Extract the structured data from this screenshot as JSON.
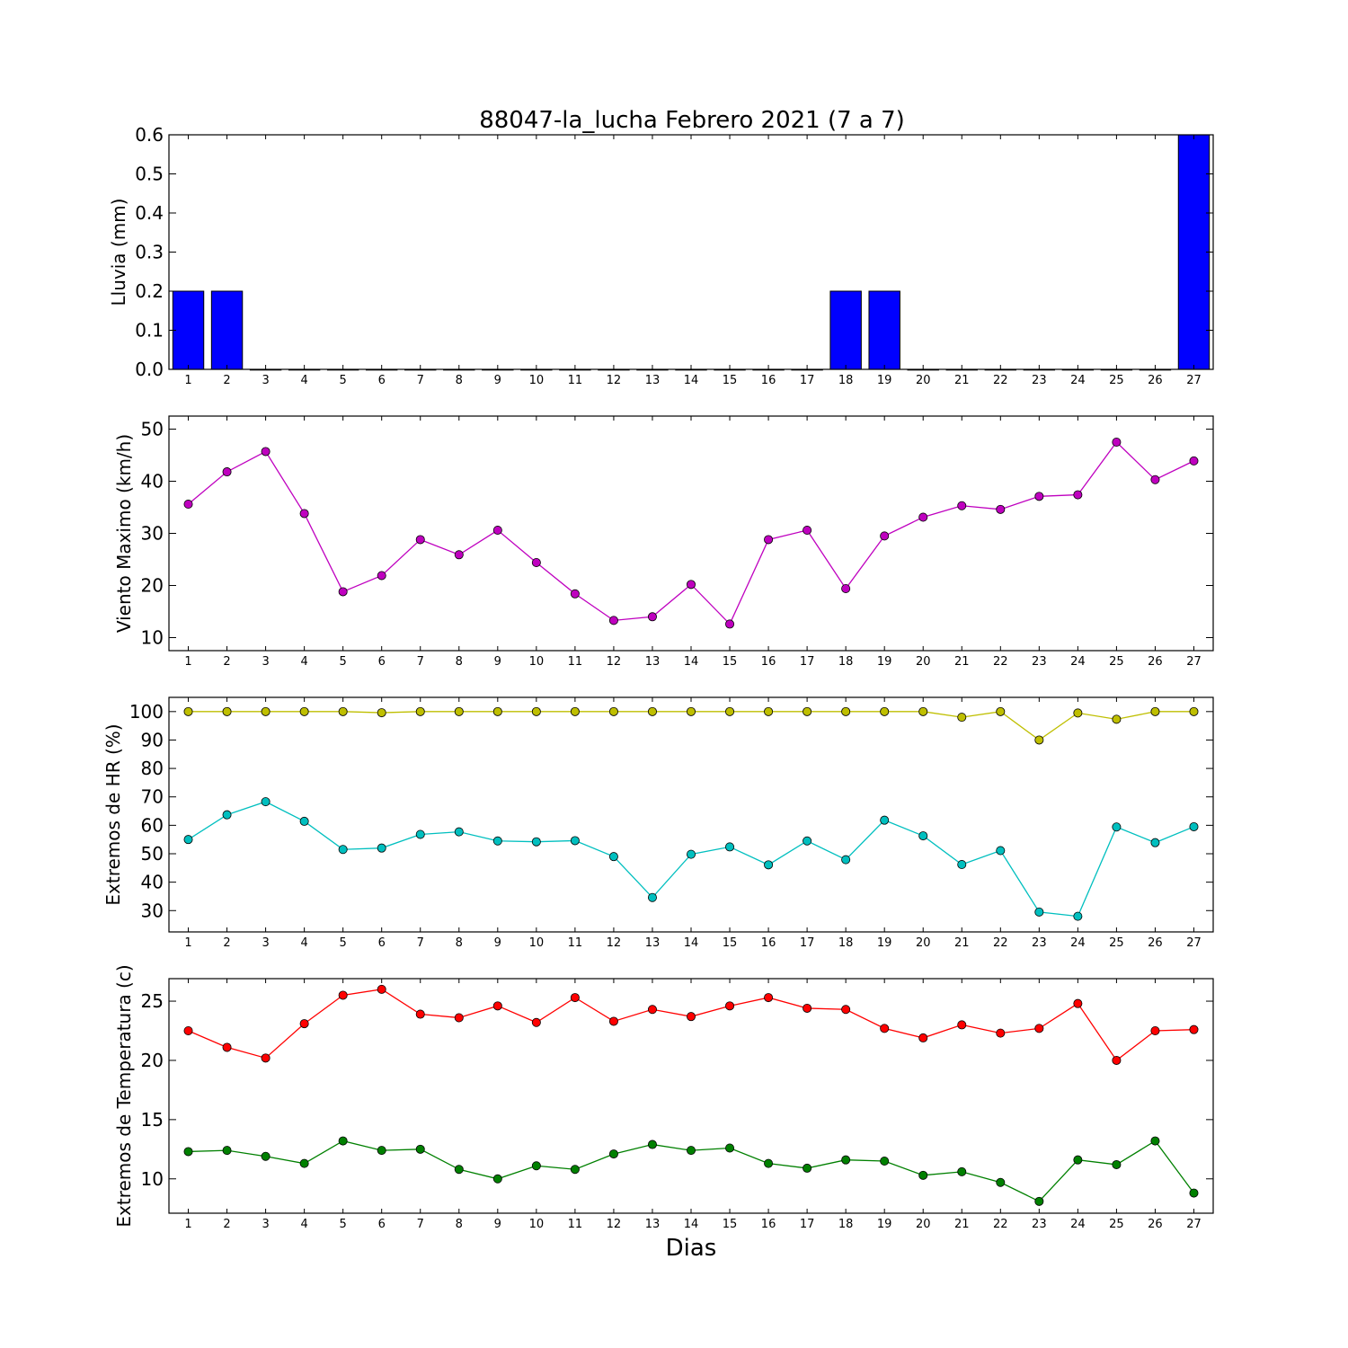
{
  "figure": {
    "title": "88047-la_lucha Febrero 2021  (7 a 7)",
    "xlabel": "Dias"
  },
  "chart_data": [
    {
      "type": "bar",
      "ylabel": "Lluvia (mm)",
      "categories": [
        "1",
        "2",
        "3",
        "4",
        "5",
        "6",
        "7",
        "8",
        "9",
        "10",
        "11",
        "12",
        "13",
        "14",
        "15",
        "16",
        "17",
        "18",
        "19",
        "20",
        "21",
        "22",
        "23",
        "24",
        "25",
        "26",
        "27"
      ],
      "ylim": [
        0,
        0.6
      ],
      "yticks": [
        0.0,
        0.1,
        0.2,
        0.3,
        0.4,
        0.5,
        0.6
      ],
      "ytick_labels": [
        "0.0",
        "0.1",
        "0.2",
        "0.3",
        "0.4",
        "0.5",
        "0.6"
      ],
      "grid": false,
      "series": [
        {
          "color": "#0000ff",
          "values": [
            0.2,
            0.2,
            0,
            0,
            0,
            0,
            0,
            0,
            0,
            0,
            0,
            0,
            0,
            0,
            0,
            0,
            0,
            0.2,
            0.2,
            0,
            0,
            0,
            0,
            0,
            0,
            0,
            0.6
          ]
        }
      ]
    },
    {
      "type": "line",
      "ylabel": "Viento Maximo (km/h)",
      "categories": [
        "1",
        "2",
        "3",
        "4",
        "5",
        "6",
        "7",
        "8",
        "9",
        "10",
        "11",
        "12",
        "13",
        "14",
        "15",
        "16",
        "17",
        "18",
        "19",
        "20",
        "21",
        "22",
        "23",
        "24",
        "25",
        "26",
        "27"
      ],
      "ylim": [
        7.5,
        52.5
      ],
      "yticks": [
        10,
        20,
        30,
        40,
        50
      ],
      "ytick_labels": [
        "10",
        "20",
        "30",
        "40",
        "50"
      ],
      "grid": false,
      "series": [
        {
          "color": "#bf00bf",
          "values": [
            35.6,
            41.8,
            45.7,
            33.8,
            18.8,
            21.9,
            28.8,
            25.9,
            30.6,
            24.4,
            18.4,
            13.3,
            14.0,
            20.2,
            12.6,
            28.8,
            30.6,
            19.4,
            29.5,
            33.1,
            35.3,
            34.6,
            37.1,
            37.4,
            47.5,
            40.3,
            43.9
          ]
        }
      ]
    },
    {
      "type": "line",
      "ylabel": "Extremos de HR (%)",
      "categories": [
        "1",
        "2",
        "3",
        "4",
        "5",
        "6",
        "7",
        "8",
        "9",
        "10",
        "11",
        "12",
        "13",
        "14",
        "15",
        "16",
        "17",
        "18",
        "19",
        "20",
        "21",
        "22",
        "23",
        "24",
        "25",
        "26",
        "27"
      ],
      "ylim": [
        22.5,
        105
      ],
      "yticks": [
        30,
        40,
        50,
        60,
        70,
        80,
        90,
        100
      ],
      "ytick_labels": [
        "30",
        "40",
        "50",
        "60",
        "70",
        "80",
        "90",
        "100"
      ],
      "grid": false,
      "series": [
        {
          "color": "#bfbf00",
          "values": [
            100,
            100,
            100,
            100,
            100,
            99.6,
            100,
            100,
            100,
            100,
            100,
            100,
            100,
            100,
            100,
            100,
            100,
            100,
            100,
            100,
            98,
            100,
            90,
            99.5,
            97.3,
            100,
            100
          ]
        },
        {
          "color": "#00bfbf",
          "values": [
            55,
            63.7,
            68.3,
            61.4,
            51.5,
            52,
            56.8,
            57.7,
            54.5,
            54.2,
            54.6,
            49,
            34.6,
            49.8,
            52.4,
            46.1,
            54.5,
            47.9,
            61.8,
            56.3,
            46.2,
            51.1,
            29.5,
            28,
            59.4,
            53.9,
            59.5
          ]
        }
      ]
    },
    {
      "type": "line",
      "ylabel": "Extremos de Temperatura (c)",
      "categories": [
        "1",
        "2",
        "3",
        "4",
        "5",
        "6",
        "7",
        "8",
        "9",
        "10",
        "11",
        "12",
        "13",
        "14",
        "15",
        "16",
        "17",
        "18",
        "19",
        "20",
        "21",
        "22",
        "23",
        "24",
        "25",
        "26",
        "27"
      ],
      "ylim": [
        7.1,
        26.9
      ],
      "yticks": [
        10,
        15,
        20,
        25
      ],
      "ytick_labels": [
        "10",
        "15",
        "20",
        "25"
      ],
      "grid": false,
      "series": [
        {
          "color": "#ff0000",
          "values": [
            22.5,
            21.1,
            20.2,
            23.1,
            25.5,
            26,
            23.9,
            23.6,
            24.6,
            23.2,
            25.3,
            23.3,
            24.3,
            23.7,
            24.6,
            25.3,
            24.4,
            24.3,
            22.7,
            21.9,
            23,
            22.3,
            22.7,
            24.8,
            20,
            22.5,
            22.6
          ]
        },
        {
          "color": "#008000",
          "values": [
            12.3,
            12.4,
            11.9,
            11.3,
            13.2,
            12.4,
            12.5,
            10.8,
            10,
            11.1,
            10.8,
            12.1,
            12.9,
            12.4,
            12.6,
            11.3,
            10.9,
            11.6,
            11.5,
            10.3,
            10.6,
            9.7,
            8.1,
            11.6,
            11.2,
            13.2,
            8.8
          ]
        }
      ]
    }
  ]
}
